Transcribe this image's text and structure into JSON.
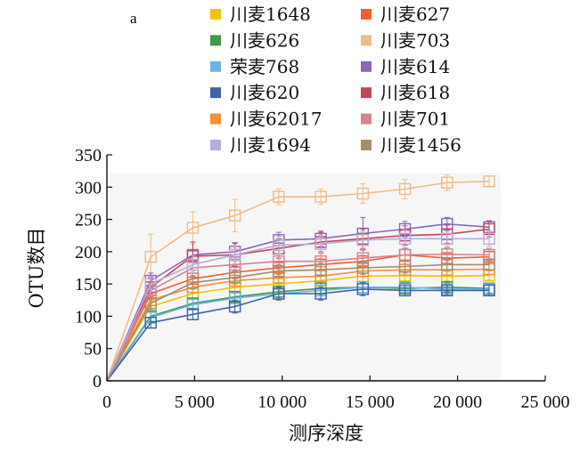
{
  "panel_label": "a",
  "chart_data": {
    "type": "line",
    "title": "",
    "xlabel": "测序深度",
    "ylabel": "OTU数目",
    "xlim": [
      0,
      25000
    ],
    "ylim": [
      0,
      350
    ],
    "x_ticks": [
      0,
      5000,
      10000,
      15000,
      20000,
      25000
    ],
    "x_tick_labels": [
      "0",
      "5 000",
      "10 000",
      "15 000",
      "20 000",
      "25 000"
    ],
    "y_ticks": [
      0,
      50,
      100,
      150,
      200,
      250,
      300,
      350
    ],
    "y_tick_labels": [
      "0",
      "50",
      "100",
      "150",
      "200",
      "250",
      "300",
      "350"
    ],
    "x": [
      0,
      2500,
      4900,
      7300,
      9800,
      12200,
      14600,
      17000,
      19400,
      21800
    ],
    "legend_placement": "top",
    "series": [
      {
        "name": "川麦1648",
        "color": "#f2c200",
        "values": [
          0,
          115,
          135,
          145,
          150,
          155,
          162,
          163,
          162,
          163
        ],
        "err": [
          0,
          8,
          8,
          9,
          9,
          8,
          8,
          8,
          7,
          7
        ]
      },
      {
        "name": "川麦627",
        "color": "#f0602a",
        "values": [
          0,
          135,
          158,
          168,
          175,
          180,
          185,
          195,
          190,
          192
        ],
        "err": [
          0,
          9,
          9,
          10,
          10,
          9,
          9,
          9,
          8,
          8
        ]
      },
      {
        "name": "川麦626",
        "color": "#3f9a4c",
        "values": [
          0,
          100,
          120,
          130,
          138,
          143,
          145,
          143,
          145,
          143
        ],
        "err": [
          0,
          8,
          8,
          8,
          9,
          9,
          8,
          8,
          7,
          7
        ]
      },
      {
        "name": "川麦703",
        "color": "#f0bb86",
        "values": [
          0,
          192,
          237,
          256,
          285,
          285,
          290,
          297,
          307,
          309
        ],
        "err": [
          0,
          35,
          25,
          25,
          12,
          12,
          15,
          15,
          12,
          8
        ]
      },
      {
        "name": "荣麦768",
        "color": "#6ab4e8",
        "values": [
          0,
          98,
          118,
          128,
          135,
          140,
          145,
          145,
          142,
          142
        ],
        "err": [
          0,
          8,
          8,
          8,
          8,
          8,
          8,
          8,
          7,
          7
        ]
      },
      {
        "name": "川麦614",
        "color": "#8a67b6",
        "values": [
          0,
          155,
          195,
          200,
          218,
          220,
          228,
          235,
          243,
          238
        ],
        "err": [
          0,
          12,
          20,
          14,
          12,
          12,
          25,
          12,
          10,
          10
        ]
      },
      {
        "name": "川麦620",
        "color": "#3c62aa",
        "values": [
          0,
          90,
          103,
          115,
          135,
          135,
          142,
          140,
          140,
          140
        ],
        "err": [
          0,
          8,
          8,
          10,
          10,
          10,
          10,
          8,
          8,
          8
        ]
      },
      {
        "name": "川麦618",
        "color": "#c2455e",
        "values": [
          0,
          145,
          193,
          195,
          205,
          215,
          220,
          225,
          227,
          235
        ],
        "err": [
          0,
          15,
          22,
          18,
          15,
          15,
          15,
          15,
          14,
          12
        ]
      },
      {
        "name": "川麦62017",
        "color": "#f58f3c",
        "values": [
          0,
          125,
          145,
          155,
          160,
          162,
          170,
          172,
          172,
          173
        ],
        "err": [
          0,
          8,
          8,
          9,
          9,
          9,
          9,
          9,
          8,
          8
        ]
      },
      {
        "name": "川麦701",
        "color": "#d9838f",
        "values": [
          0,
          140,
          175,
          180,
          185,
          185,
          190,
          195,
          196,
          195
        ],
        "err": [
          0,
          10,
          12,
          12,
          12,
          12,
          12,
          10,
          10,
          10
        ]
      },
      {
        "name": "川麦1694",
        "color": "#b7addb",
        "values": [
          0,
          150,
          180,
          195,
          210,
          212,
          218,
          220,
          220,
          220
        ],
        "err": [
          0,
          12,
          14,
          14,
          14,
          14,
          14,
          14,
          12,
          12
        ]
      },
      {
        "name": "川麦1456",
        "color": "#a48d68",
        "values": [
          0,
          120,
          152,
          160,
          170,
          172,
          175,
          177,
          180,
          180
        ],
        "err": [
          0,
          9,
          10,
          10,
          10,
          10,
          10,
          10,
          9,
          9
        ]
      }
    ]
  }
}
